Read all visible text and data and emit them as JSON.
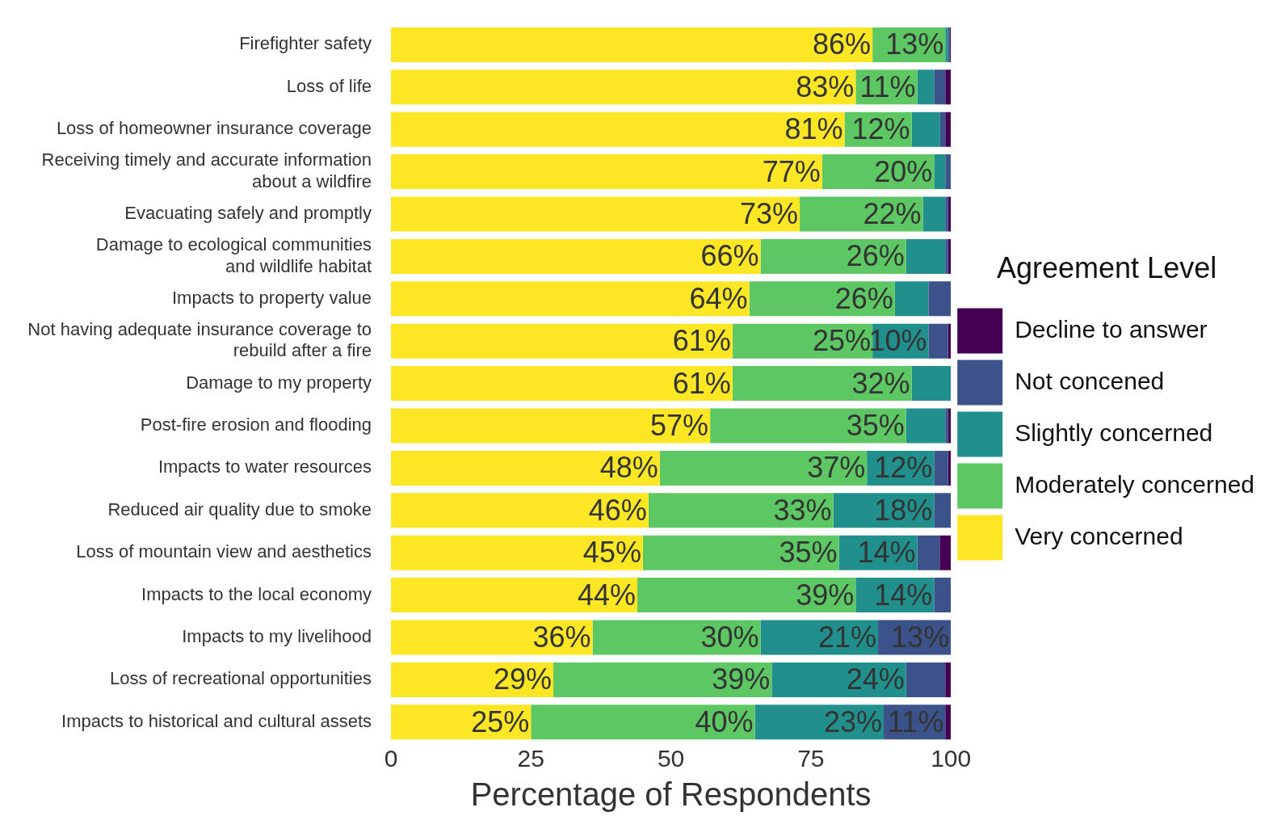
{
  "chart_data": {
    "type": "bar",
    "orientation": "horizontal",
    "stacked": true,
    "categories": [
      "Firefighter safety",
      "Loss of life",
      "Loss of homeowner insurance coverage",
      "Receiving timely and accurate information\nabout a wildfire",
      "Evacuating safely and promptly",
      "Damage to ecological communities\nand wildlife habitat",
      "Impacts to property value",
      "Not having adequate insurance coverage to\nrebuild after a fire",
      "Damage to my property",
      "Post-fire erosion and flooding",
      "Impacts to water resources",
      "Reduced air quality due to smoke",
      "Loss of mountain view and aesthetics",
      "Impacts to the local economy",
      "Impacts to my livelihood",
      "Loss of recreational opportunities",
      "Impacts to historical and cultural assets"
    ],
    "series": [
      {
        "name": "Very concerned",
        "color": "#fde725",
        "values": [
          86,
          83,
          81,
          77,
          73,
          66,
          64,
          61,
          61,
          57,
          48,
          46,
          45,
          44,
          36,
          29,
          25
        ],
        "value_labels": [
          "86%",
          "83%",
          "81%",
          "77%",
          "73%",
          "66%",
          "64%",
          "61%",
          "61%",
          "57%",
          "48%",
          "46%",
          "45%",
          "44%",
          "36%",
          "29%",
          "25%"
        ]
      },
      {
        "name": "Moderately concerned",
        "color": "#5dc863",
        "values": [
          13,
          11,
          12,
          20,
          22,
          26,
          26,
          25,
          32,
          35,
          37,
          33,
          35,
          39,
          30,
          39,
          40
        ],
        "value_labels": [
          "13%",
          "11%",
          "12%",
          "20%",
          "22%",
          "26%",
          "26%",
          "25%",
          "32%",
          "35%",
          "37%",
          "33%",
          "35%",
          "39%",
          "30%",
          "39%",
          "40%"
        ]
      },
      {
        "name": "Slightly concerned",
        "color": "#21908c",
        "values": [
          0.5,
          3,
          5,
          2,
          4,
          7,
          6,
          10,
          7,
          7,
          12,
          18,
          14,
          14,
          21,
          24,
          23
        ],
        "value_labels": [
          null,
          null,
          null,
          null,
          null,
          null,
          null,
          "10%",
          null,
          null,
          "12%",
          "18%",
          "14%",
          "14%",
          "21%",
          "24%",
          "23%"
        ]
      },
      {
        "name": "Not concened",
        "color": "#3b528b",
        "values": [
          0.3,
          2,
          1,
          1,
          0.5,
          0.5,
          4,
          3.5,
          0,
          0.5,
          2.5,
          3,
          4,
          3,
          13,
          7,
          11
        ],
        "value_labels": [
          null,
          null,
          null,
          null,
          null,
          null,
          null,
          null,
          null,
          null,
          null,
          null,
          null,
          null,
          "13%",
          null,
          "11%"
        ]
      },
      {
        "name": "Decline to answer",
        "color": "#440154",
        "values": [
          0.2,
          1,
          1,
          0,
          0.5,
          0.5,
          0,
          0.5,
          0,
          0.5,
          0.5,
          0,
          2,
          0,
          0,
          1,
          1
        ]
      }
    ],
    "xlim": [
      0,
      100
    ],
    "xticks": [
      0,
      25,
      50,
      75,
      100
    ],
    "xlabel": "Percentage of Respondents",
    "legend_title": "Agreement Level",
    "legend": "right"
  }
}
